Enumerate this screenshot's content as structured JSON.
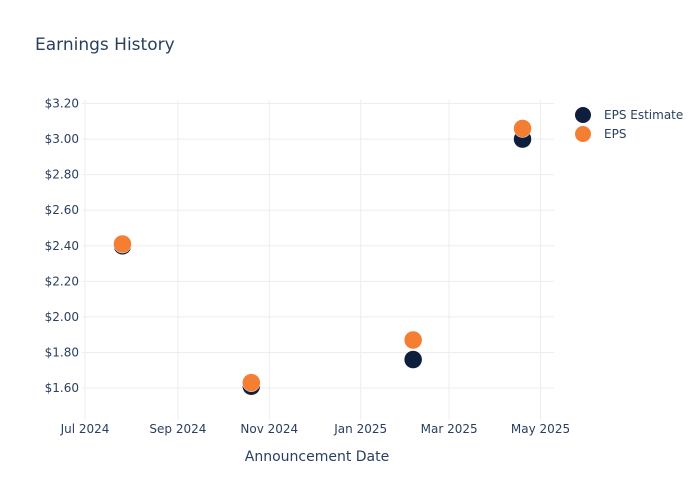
{
  "colors": {
    "eps_estimate": "#0d1f3c",
    "eps": "#f47f33",
    "grid": "#ebedf0",
    "text": "#2a3f5f"
  },
  "chart_data": {
    "type": "scatter",
    "title": "Earnings History",
    "xlabel": "Announcement Date",
    "ylabel": "",
    "x_ticks": [
      "Jul 2024",
      "Sep 2024",
      "Nov 2024",
      "Jan 2025",
      "Mar 2025",
      "May 2025"
    ],
    "x_tick_dates": [
      "2024-07-01",
      "2024-09-01",
      "2024-11-01",
      "2025-01-01",
      "2025-03-01",
      "2025-05-01"
    ],
    "xlim": [
      "2024-06-29",
      "2025-05-10"
    ],
    "y_ticks": [
      "$1.60",
      "$1.80",
      "$2.00",
      "$2.20",
      "$2.40",
      "$2.60",
      "$2.80",
      "$3.00",
      "$3.20"
    ],
    "y_tick_values": [
      1.6,
      1.8,
      2.0,
      2.2,
      2.4,
      2.6,
      2.8,
      3.0,
      3.2
    ],
    "ylim": [
      1.42,
      3.22
    ],
    "grid": true,
    "legend_position": "top-right",
    "series": [
      {
        "name": "EPS Estimate",
        "points": [
          {
            "x": "2024-07-26",
            "y": 2.4
          },
          {
            "x": "2024-10-20",
            "y": 1.61
          },
          {
            "x": "2025-02-05",
            "y": 1.76
          },
          {
            "x": "2025-04-19",
            "y": 3.0
          }
        ]
      },
      {
        "name": "EPS",
        "points": [
          {
            "x": "2024-07-26",
            "y": 2.41
          },
          {
            "x": "2024-10-20",
            "y": 1.63
          },
          {
            "x": "2025-02-05",
            "y": 1.87
          },
          {
            "x": "2025-04-19",
            "y": 3.06
          }
        ]
      }
    ]
  }
}
